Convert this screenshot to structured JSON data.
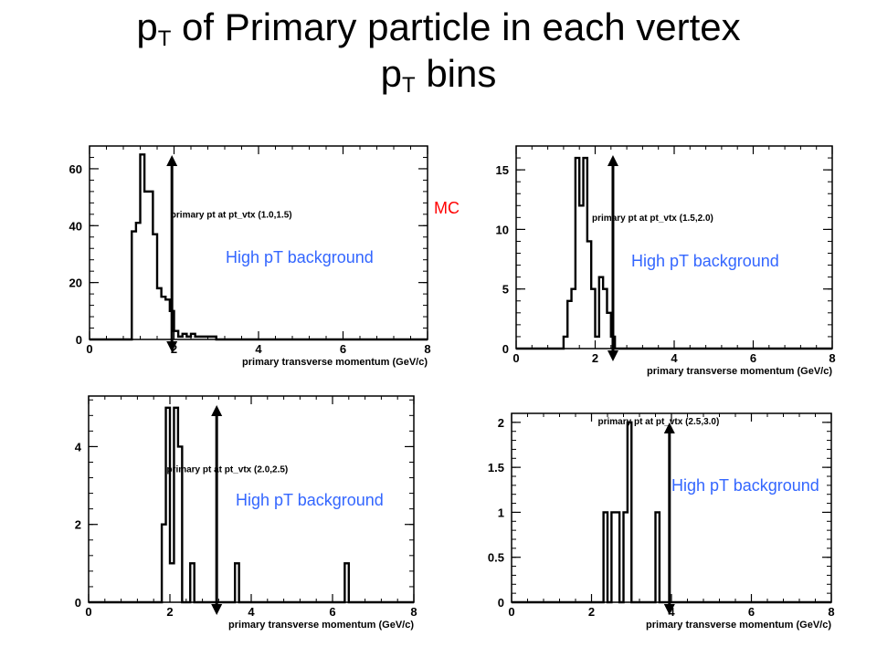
{
  "title": {
    "line1_pre": "p",
    "line1_sub": "T",
    "line1_post": " of Primary particle in each vertex",
    "line2_pre": "p",
    "line2_sub": "T",
    "line2_post": " bins"
  },
  "mc_label": "MC",
  "background_label": "High pT background",
  "colors": {
    "background_label": "#3366ff",
    "mc_label": "#ff0000",
    "histogram": "#000000"
  },
  "chart_data": [
    {
      "type": "histogram",
      "title": "primary pt at pt_vtx (1.0,1.5)",
      "xlabel": "primary transverse momentum (GeV/c)",
      "xlim": [
        0,
        8
      ],
      "ylim": [
        0,
        68
      ],
      "xticks": [
        "0",
        "2",
        "4",
        "6",
        "8"
      ],
      "yticks": [
        "0",
        "20",
        "40",
        "60"
      ],
      "ytick_values": [
        0,
        20,
        40,
        60
      ],
      "bin_edges_start": 0,
      "bin_width": 0.1,
      "values": [
        0,
        0,
        0,
        0,
        0,
        0,
        0,
        0,
        0,
        0,
        38,
        41,
        65,
        52,
        52,
        37,
        18,
        15,
        14,
        10,
        3,
        1,
        2,
        1,
        2,
        1,
        1,
        1,
        1,
        1,
        0,
        0,
        0,
        0,
        0,
        0,
        0,
        0,
        0,
        0,
        0,
        0,
        0,
        0,
        0,
        0,
        0,
        0,
        0,
        0,
        0,
        0,
        0,
        0,
        0,
        0,
        0,
        0,
        0,
        0,
        0,
        0,
        0,
        0,
        0,
        0,
        0,
        0,
        0,
        0,
        0,
        0,
        0,
        0,
        0,
        0,
        0,
        0,
        0,
        0
      ],
      "cut_arrow_x": 1.95,
      "background_label": "High pT background"
    },
    {
      "type": "histogram",
      "title": "primary pt at pt_vtx (1.5,2.0)",
      "xlabel": "primary transverse momentum (GeV/c)",
      "xlim": [
        0,
        8
      ],
      "ylim": [
        0,
        17
      ],
      "xticks": [
        "0",
        "2",
        "4",
        "6",
        "8"
      ],
      "yticks": [
        "0",
        "5",
        "10",
        "15"
      ],
      "ytick_values": [
        0,
        5,
        10,
        15
      ],
      "bin_edges_start": 0,
      "bin_width": 0.1,
      "values": [
        0,
        0,
        0,
        0,
        0,
        0,
        0,
        0,
        0,
        0,
        0,
        0,
        1,
        4,
        5,
        16,
        12,
        16,
        9,
        5,
        1,
        6,
        5,
        3,
        1,
        0,
        0,
        0,
        0,
        0,
        0,
        0,
        0,
        0,
        0,
        0,
        0,
        0,
        0,
        0,
        0,
        0,
        0,
        0,
        0,
        0,
        0,
        0,
        0,
        0,
        0,
        0,
        0,
        0,
        0,
        0,
        0,
        0,
        0,
        0,
        0,
        0,
        0,
        0,
        0,
        0,
        0,
        0,
        0,
        0,
        0,
        0,
        0,
        0,
        0,
        0,
        0,
        0,
        0,
        0
      ],
      "cut_arrow_x": 2.45,
      "background_label": "High pT background"
    },
    {
      "type": "histogram",
      "title": "primary pt at pt_vtx (2.0,2.5)",
      "xlabel": "primary transverse momentum (GeV/c)",
      "xlim": [
        0,
        8
      ],
      "ylim": [
        0,
        5.3
      ],
      "xticks": [
        "0",
        "2",
        "4",
        "6",
        "8"
      ],
      "yticks": [
        "0",
        "2",
        "4"
      ],
      "ytick_values": [
        0,
        2,
        4
      ],
      "bin_edges_start": 0,
      "bin_width": 0.1,
      "values": [
        0,
        0,
        0,
        0,
        0,
        0,
        0,
        0,
        0,
        0,
        0,
        0,
        0,
        0,
        0,
        0,
        0,
        0,
        2,
        5,
        1,
        5,
        4,
        0,
        0,
        1,
        0,
        0,
        0,
        0,
        0,
        0,
        0,
        0,
        0,
        0,
        1,
        0,
        0,
        0,
        0,
        0,
        0,
        0,
        0,
        0,
        0,
        0,
        0,
        0,
        0,
        0,
        0,
        0,
        0,
        0,
        0,
        0,
        0,
        0,
        0,
        0,
        0,
        1,
        0,
        0,
        0,
        0,
        0,
        0,
        0,
        0,
        0,
        0,
        0,
        0,
        0,
        0,
        0,
        0
      ],
      "cut_arrow_x": 3.15,
      "background_label": "High pT background"
    },
    {
      "type": "histogram",
      "title": "primary pt at pt_vtx (2.5,3.0)",
      "xlabel": "primary transverse momentum (GeV/c)",
      "xlim": [
        0,
        8
      ],
      "ylim": [
        0,
        2.1
      ],
      "xticks": [
        "0",
        "2",
        "4",
        "6",
        "8"
      ],
      "yticks": [
        "0",
        "0.5",
        "1",
        "1.5",
        "2"
      ],
      "ytick_values": [
        0,
        0.5,
        1,
        1.5,
        2
      ],
      "bin_edges_start": 0,
      "bin_width": 0.1,
      "values": [
        0,
        0,
        0,
        0,
        0,
        0,
        0,
        0,
        0,
        0,
        0,
        0,
        0,
        0,
        0,
        0,
        0,
        0,
        0,
        0,
        0,
        0,
        0,
        1,
        0,
        1,
        1,
        0,
        1,
        2,
        0,
        0,
        0,
        0,
        0,
        0,
        1,
        0,
        0,
        0,
        0,
        0,
        0,
        0,
        0,
        0,
        0,
        0,
        0,
        0,
        0,
        0,
        0,
        0,
        0,
        0,
        0,
        0,
        0,
        0,
        0,
        0,
        0,
        0,
        0,
        0,
        0,
        0,
        0,
        0,
        0,
        0,
        0,
        0,
        0,
        0,
        0,
        0,
        0,
        0
      ],
      "cut_arrow_x": 3.95,
      "background_label": "High pT background"
    }
  ]
}
